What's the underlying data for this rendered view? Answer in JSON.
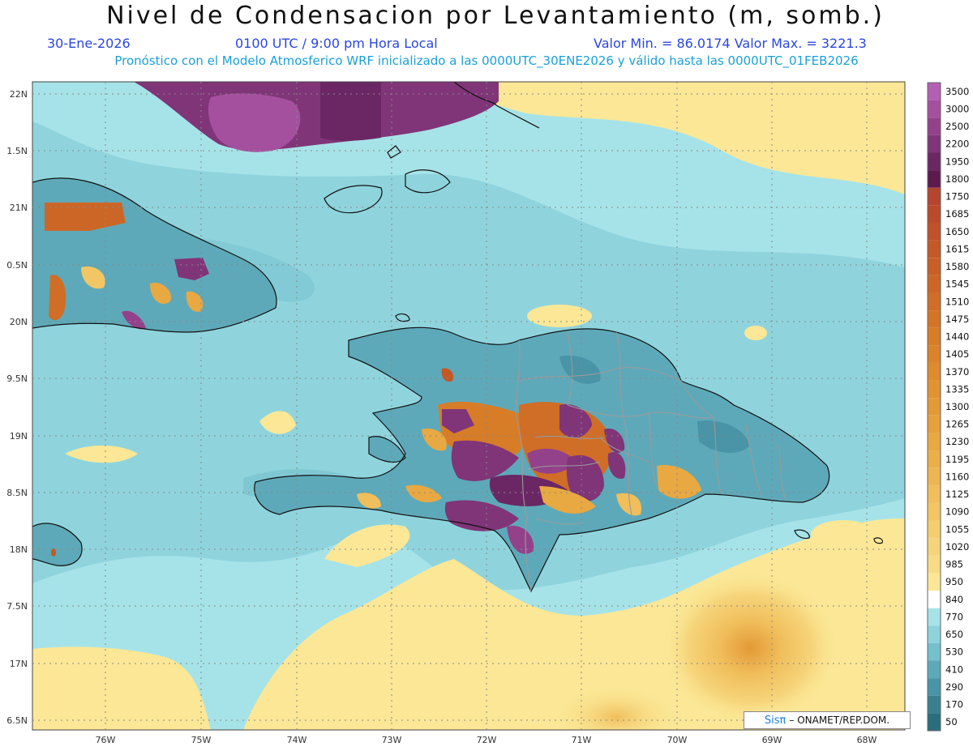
{
  "title": "Nivel de Condensacion por Levantamiento (m, somb.)",
  "date": "30-Ene-2026",
  "time": "0100 UTC / 9:00 pm Hora Local",
  "minmax": "Valor Min. = 86.0174  Valor Max. = 3221.3",
  "forecast": "Pronóstico con el Modelo Atmosferico WRF inicializado a las 0000UTC_30ENE2026 y válido hasta las  0000UTC_01FEB2026",
  "credit": {
    "sis": "Sisπ",
    "org": "– ONAMET/REP.DOM."
  },
  "axes": {
    "lat_labels": [
      "22N",
      "1.5N",
      "21N",
      "0.5N",
      "20N",
      "9.5N",
      "19N",
      "8.5N",
      "18N",
      "7.5N",
      "17N",
      "6.5N"
    ],
    "lon_labels": [
      "76W",
      "75W",
      "74W",
      "73W",
      "72W",
      "71W",
      "70W",
      "69W",
      "68W"
    ]
  },
  "colorbar": {
    "labels": [
      "3500",
      "3000",
      "2500",
      "2200",
      "1950",
      "1800",
      "1750",
      "1685",
      "1650",
      "1615",
      "1580",
      "1545",
      "1510",
      "1475",
      "1440",
      "1405",
      "1370",
      "1335",
      "1300",
      "1265",
      "1230",
      "1195",
      "1160",
      "1125",
      "1090",
      "1055",
      "1020",
      "985",
      "950",
      "840",
      "770",
      "650",
      "530",
      "410",
      "290",
      "170",
      "50"
    ],
    "colors": [
      "#b35fb3",
      "#a5509f",
      "#94418b",
      "#803578",
      "#6b2764",
      "#5d1a4f",
      "#b5452e",
      "#bb4a2b",
      "#c05129",
      "#c45827",
      "#c75f27",
      "#cc6626",
      "#d06d26",
      "#d47526",
      "#d77c27",
      "#db832a",
      "#de8a2e",
      "#e19232",
      "#e49937",
      "#e6a03c",
      "#e8a842",
      "#ebaf4a",
      "#edb652",
      "#f0be5b",
      "#f2c664",
      "#f4cd6f",
      "#f6d47a",
      "#f8db86",
      "#fbe796",
      "#ffffff",
      "#a6e3e8",
      "#8ed3dc",
      "#75c0cd",
      "#5ea9b9",
      "#4994a6",
      "#38808f",
      "#2a6e7e"
    ]
  }
}
